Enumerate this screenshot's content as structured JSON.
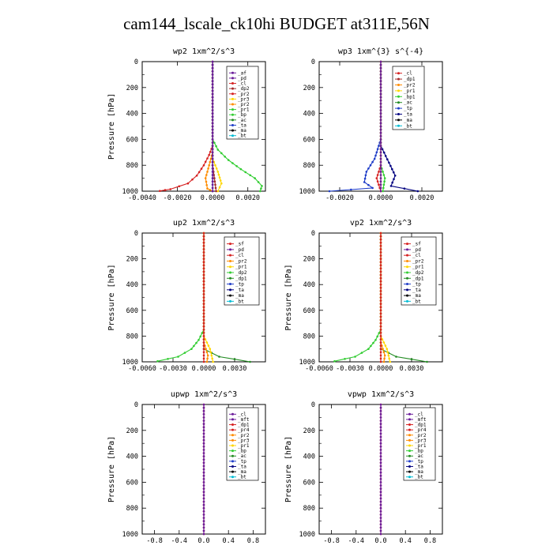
{
  "title": "cam144_lscale_ck10hi  BUDGET at311E,56N",
  "colors": {
    "purple": "#6a1b9a",
    "red": "#d62020",
    "brown": "#a52a2a",
    "magenta": "#c71585",
    "orange": "#ff8c00",
    "gold": "#ffd700",
    "green": "#32cd32",
    "darkgreen": "#228b22",
    "blue": "#1e3cc8",
    "navy": "#000080",
    "black": "#000000",
    "cyan": "#00bcd4"
  },
  "chart_data": [
    {
      "type": "line",
      "title": "wp2  1xm^2/s^3",
      "ylabel": "Pressure [hPa]",
      "ylim": [
        1000,
        0
      ],
      "xlim": [
        -0.004,
        0.003
      ],
      "xticks": [
        -0.004,
        -0.002,
        0.0,
        0.002
      ],
      "xtick_labels": [
        "-0.0040",
        "-0.0020",
        "0.0000",
        "0.0020"
      ],
      "yticks": [
        0,
        200,
        400,
        600,
        800,
        1000
      ],
      "ytick_labels": [
        "0",
        "200",
        "400",
        "600",
        "800",
        "1000"
      ],
      "legend": [
        "_af",
        "_pd",
        "_cl",
        "_dp2",
        "_pr2",
        "_pr3",
        "_pr2",
        "_pr1",
        "_bp",
        "_ac",
        "_ta",
        "_ma",
        "_bt"
      ],
      "legend_colors": [
        "purple",
        "purple",
        "red",
        "brown",
        "red",
        "gold",
        "orange",
        "green",
        "green",
        "darkgreen",
        "blue",
        "black",
        "cyan"
      ],
      "series": [
        {
          "color": "red",
          "points": [
            [
              0.0,
              0
            ],
            [
              0.0,
              650
            ],
            [
              -0.0002,
              720
            ],
            [
              -0.0005,
              800
            ],
            [
              -0.0009,
              880
            ],
            [
              -0.0014,
              940
            ],
            [
              -0.0024,
              985
            ],
            [
              -0.003,
              998
            ]
          ]
        },
        {
          "color": "green",
          "points": [
            [
              0.0,
              0
            ],
            [
              0.0,
              600
            ],
            [
              0.0003,
              680
            ],
            [
              0.0009,
              760
            ],
            [
              0.0016,
              830
            ],
            [
              0.0024,
              900
            ],
            [
              0.0028,
              960
            ],
            [
              0.0027,
              1000
            ]
          ]
        },
        {
          "color": "orange",
          "points": [
            [
              0.0,
              0
            ],
            [
              0.0,
              700
            ],
            [
              -0.0002,
              800
            ],
            [
              -0.0004,
              900
            ],
            [
              -0.0003,
              980
            ],
            [
              0.0,
              1000
            ]
          ]
        },
        {
          "color": "gold",
          "points": [
            [
              0.0,
              0
            ],
            [
              0.0,
              750
            ],
            [
              0.0003,
              850
            ],
            [
              0.0005,
              940
            ],
            [
              0.0003,
              1000
            ]
          ]
        },
        {
          "color": "brown",
          "points": [
            [
              0.0,
              0
            ],
            [
              0.0,
              800
            ],
            [
              0.0001,
              900
            ],
            [
              0.0002,
              1000
            ]
          ]
        },
        {
          "color": "blue",
          "points": [
            [
              0.0,
              0
            ],
            [
              0.0,
              1000
            ]
          ]
        },
        {
          "color": "purple",
          "points": [
            [
              0.0,
              0
            ],
            [
              0.0,
              1000
            ]
          ]
        }
      ]
    },
    {
      "type": "line",
      "title": "wp3  1xm^{3} s^{-4}",
      "ylabel": "",
      "ylim": [
        1000,
        0
      ],
      "xlim": [
        -0.003,
        0.003
      ],
      "xticks": [
        -0.002,
        0.0,
        0.002
      ],
      "xtick_labels": [
        "-0.0020",
        "0.0000",
        "0.0020"
      ],
      "yticks": [
        0,
        200,
        400,
        600,
        800,
        1000
      ],
      "ytick_labels": [
        "0",
        "200",
        "400",
        "600",
        "800",
        "1000"
      ],
      "legend": [
        "_cl",
        "_dp1",
        "_pr2",
        "_pr1",
        "_bp1",
        "_ac",
        "_tp",
        "_ta",
        "_ma",
        "_bt"
      ],
      "legend_colors": [
        "red",
        "brown",
        "orange",
        "gold",
        "green",
        "darkgreen",
        "blue",
        "navy",
        "black",
        "cyan"
      ],
      "series": [
        {
          "color": "blue",
          "points": [
            [
              0.0,
              0
            ],
            [
              0.0,
              600
            ],
            [
              -0.0003,
              750
            ],
            [
              -0.0007,
              850
            ],
            [
              -0.0008,
              930
            ],
            [
              -0.0004,
              975
            ],
            [
              -0.0025,
              1000
            ]
          ]
        },
        {
          "color": "navy",
          "points": [
            [
              0.0,
              0
            ],
            [
              0.0,
              650
            ],
            [
              0.0004,
              780
            ],
            [
              0.0007,
              880
            ],
            [
              0.0005,
              960
            ],
            [
              0.0018,
              1000
            ]
          ]
        },
        {
          "color": "red",
          "points": [
            [
              0.0,
              0
            ],
            [
              0.0,
              800
            ],
            [
              -0.0002,
              900
            ],
            [
              0.0,
              1000
            ]
          ]
        },
        {
          "color": "green",
          "points": [
            [
              0.0,
              0
            ],
            [
              0.0,
              800
            ],
            [
              0.0002,
              900
            ],
            [
              0.0001,
              1000
            ]
          ]
        },
        {
          "color": "orange",
          "points": [
            [
              0.0,
              0
            ],
            [
              0.0,
              1000
            ]
          ]
        },
        {
          "color": "purple",
          "points": [
            [
              0.0,
              0
            ],
            [
              0.0,
              1000
            ]
          ]
        }
      ]
    },
    {
      "type": "line",
      "title": "up2  1xm^2/s^3",
      "ylabel": "Pressure [hPa]",
      "ylim": [
        1000,
        0
      ],
      "xlim": [
        -0.006,
        0.006
      ],
      "xticks": [
        -0.006,
        -0.003,
        0.0,
        0.003
      ],
      "xtick_labels": [
        "-0.0060",
        "-0.0030",
        "0.0000",
        "0.0030"
      ],
      "yticks": [
        0,
        200,
        400,
        600,
        800,
        1000
      ],
      "ytick_labels": [
        "0",
        "200",
        "400",
        "600",
        "800",
        "1000"
      ],
      "legend": [
        "_sf",
        "_pd",
        "_cl",
        "_pr2",
        "_pr1",
        "_dp2",
        "_dp1",
        "_tp",
        "_ta",
        "_ma",
        "_bt"
      ],
      "legend_colors": [
        "red",
        "purple",
        "red",
        "orange",
        "gold",
        "green",
        "darkgreen",
        "blue",
        "navy",
        "black",
        "cyan"
      ],
      "series": [
        {
          "color": "green",
          "points": [
            [
              0.0,
              0
            ],
            [
              0.0,
              750
            ],
            [
              -0.0005,
              830
            ],
            [
              -0.0012,
              900
            ],
            [
              -0.0025,
              960
            ],
            [
              -0.0045,
              995
            ]
          ]
        },
        {
          "color": "darkgreen",
          "points": [
            [
              0.0,
              0
            ],
            [
              0.0,
              900
            ],
            [
              0.0015,
              960
            ],
            [
              0.0045,
              1000
            ]
          ]
        },
        {
          "color": "gold",
          "points": [
            [
              0.0,
              0
            ],
            [
              0.0,
              800
            ],
            [
              0.0006,
              900
            ],
            [
              0.0009,
              1000
            ]
          ]
        },
        {
          "color": "orange",
          "points": [
            [
              0.0,
              0
            ],
            [
              0.0,
              850
            ],
            [
              0.0004,
              950
            ],
            [
              0.0003,
              1000
            ]
          ]
        },
        {
          "color": "red",
          "points": [
            [
              0.0,
              0
            ],
            [
              0.0,
              1000
            ]
          ]
        }
      ]
    },
    {
      "type": "line",
      "title": "vp2  1xm^2/s^3",
      "ylabel": "Pressure [hPa]",
      "ylim": [
        1000,
        0
      ],
      "xlim": [
        -0.006,
        0.006
      ],
      "xticks": [
        -0.006,
        -0.003,
        0.0,
        0.003
      ],
      "xtick_labels": [
        "-0.0060",
        "-0.0030",
        "0.0000",
        "0.0030"
      ],
      "yticks": [
        0,
        200,
        400,
        600,
        800,
        1000
      ],
      "ytick_labels": [
        "0",
        "200",
        "400",
        "600",
        "800",
        "1000"
      ],
      "legend": [
        "_sf",
        "_pd",
        "_cl",
        "_pr2",
        "_pr1",
        "_dp2",
        "_dp1",
        "_tp",
        "_ta",
        "_ma",
        "_bt"
      ],
      "legend_colors": [
        "red",
        "purple",
        "red",
        "orange",
        "gold",
        "green",
        "darkgreen",
        "blue",
        "navy",
        "black",
        "cyan"
      ],
      "series": [
        {
          "color": "green",
          "points": [
            [
              0.0,
              0
            ],
            [
              0.0,
              750
            ],
            [
              -0.0005,
              830
            ],
            [
              -0.0012,
              900
            ],
            [
              -0.0025,
              960
            ],
            [
              -0.0045,
              995
            ]
          ]
        },
        {
          "color": "darkgreen",
          "points": [
            [
              0.0,
              0
            ],
            [
              0.0,
              900
            ],
            [
              0.0015,
              960
            ],
            [
              0.0045,
              1000
            ]
          ]
        },
        {
          "color": "gold",
          "points": [
            [
              0.0,
              0
            ],
            [
              0.0,
              800
            ],
            [
              0.0006,
              900
            ],
            [
              0.0009,
              1000
            ]
          ]
        },
        {
          "color": "orange",
          "points": [
            [
              0.0,
              0
            ],
            [
              0.0,
              850
            ],
            [
              0.0004,
              950
            ],
            [
              0.0003,
              1000
            ]
          ]
        },
        {
          "color": "red",
          "points": [
            [
              0.0,
              0
            ],
            [
              0.0,
              1000
            ]
          ]
        }
      ]
    },
    {
      "type": "line",
      "title": "upwp  1xm^2/s^3",
      "ylabel": "Pressure [hPa]",
      "ylim": [
        1000,
        0
      ],
      "xlim": [
        -1.0,
        1.0
      ],
      "xticks": [
        -0.8,
        -0.4,
        0.0,
        0.4,
        0.8
      ],
      "xtick_labels": [
        "-0.8",
        "-0.4",
        "0.0",
        "0.4",
        "0.8"
      ],
      "yticks": [
        0,
        200,
        400,
        600,
        800,
        1000
      ],
      "ytick_labels": [
        "0",
        "200",
        "400",
        "600",
        "800",
        "1000"
      ],
      "legend": [
        "_cl",
        "_mft",
        "_dp1",
        "_pr4",
        "_pr2",
        "_pr3",
        "_pr1",
        "_bp",
        "_ac",
        "_tp",
        "_ta",
        "_ma",
        "_bt"
      ],
      "legend_colors": [
        "purple",
        "purple",
        "red",
        "red",
        "orange",
        "orange",
        "gold",
        "green",
        "darkgreen",
        "blue",
        "navy",
        "black",
        "cyan"
      ],
      "series": [
        {
          "color": "red",
          "points": [
            [
              0.0,
              0
            ],
            [
              0.0,
              1000
            ]
          ]
        },
        {
          "color": "purple",
          "points": [
            [
              0.0,
              0
            ],
            [
              0.0,
              1000
            ]
          ]
        }
      ]
    },
    {
      "type": "line",
      "title": "vpwp  1xm^2/s^3",
      "ylabel": "Pressure [hPa]",
      "ylim": [
        1000,
        0
      ],
      "xlim": [
        -1.0,
        1.0
      ],
      "xticks": [
        -0.8,
        -0.4,
        0.0,
        0.4,
        0.8
      ],
      "xtick_labels": [
        "-0.8",
        "-0.4",
        "0.0",
        "0.4",
        "0.8"
      ],
      "yticks": [
        0,
        200,
        400,
        600,
        800,
        1000
      ],
      "ytick_labels": [
        "0",
        "200",
        "400",
        "600",
        "800",
        "1000"
      ],
      "legend": [
        "_cl",
        "_mft",
        "_dp1",
        "_pr4",
        "_pr2",
        "_pr3",
        "_pr1",
        "_bp",
        "_ac",
        "_tp",
        "_ta",
        "_ma",
        "_bt"
      ],
      "legend_colors": [
        "purple",
        "purple",
        "red",
        "red",
        "orange",
        "orange",
        "gold",
        "green",
        "darkgreen",
        "blue",
        "navy",
        "black",
        "cyan"
      ],
      "series": [
        {
          "color": "red",
          "points": [
            [
              0.0,
              0
            ],
            [
              0.0,
              1000
            ]
          ]
        },
        {
          "color": "purple",
          "points": [
            [
              0.0,
              0
            ],
            [
              0.0,
              1000
            ]
          ]
        }
      ]
    }
  ]
}
